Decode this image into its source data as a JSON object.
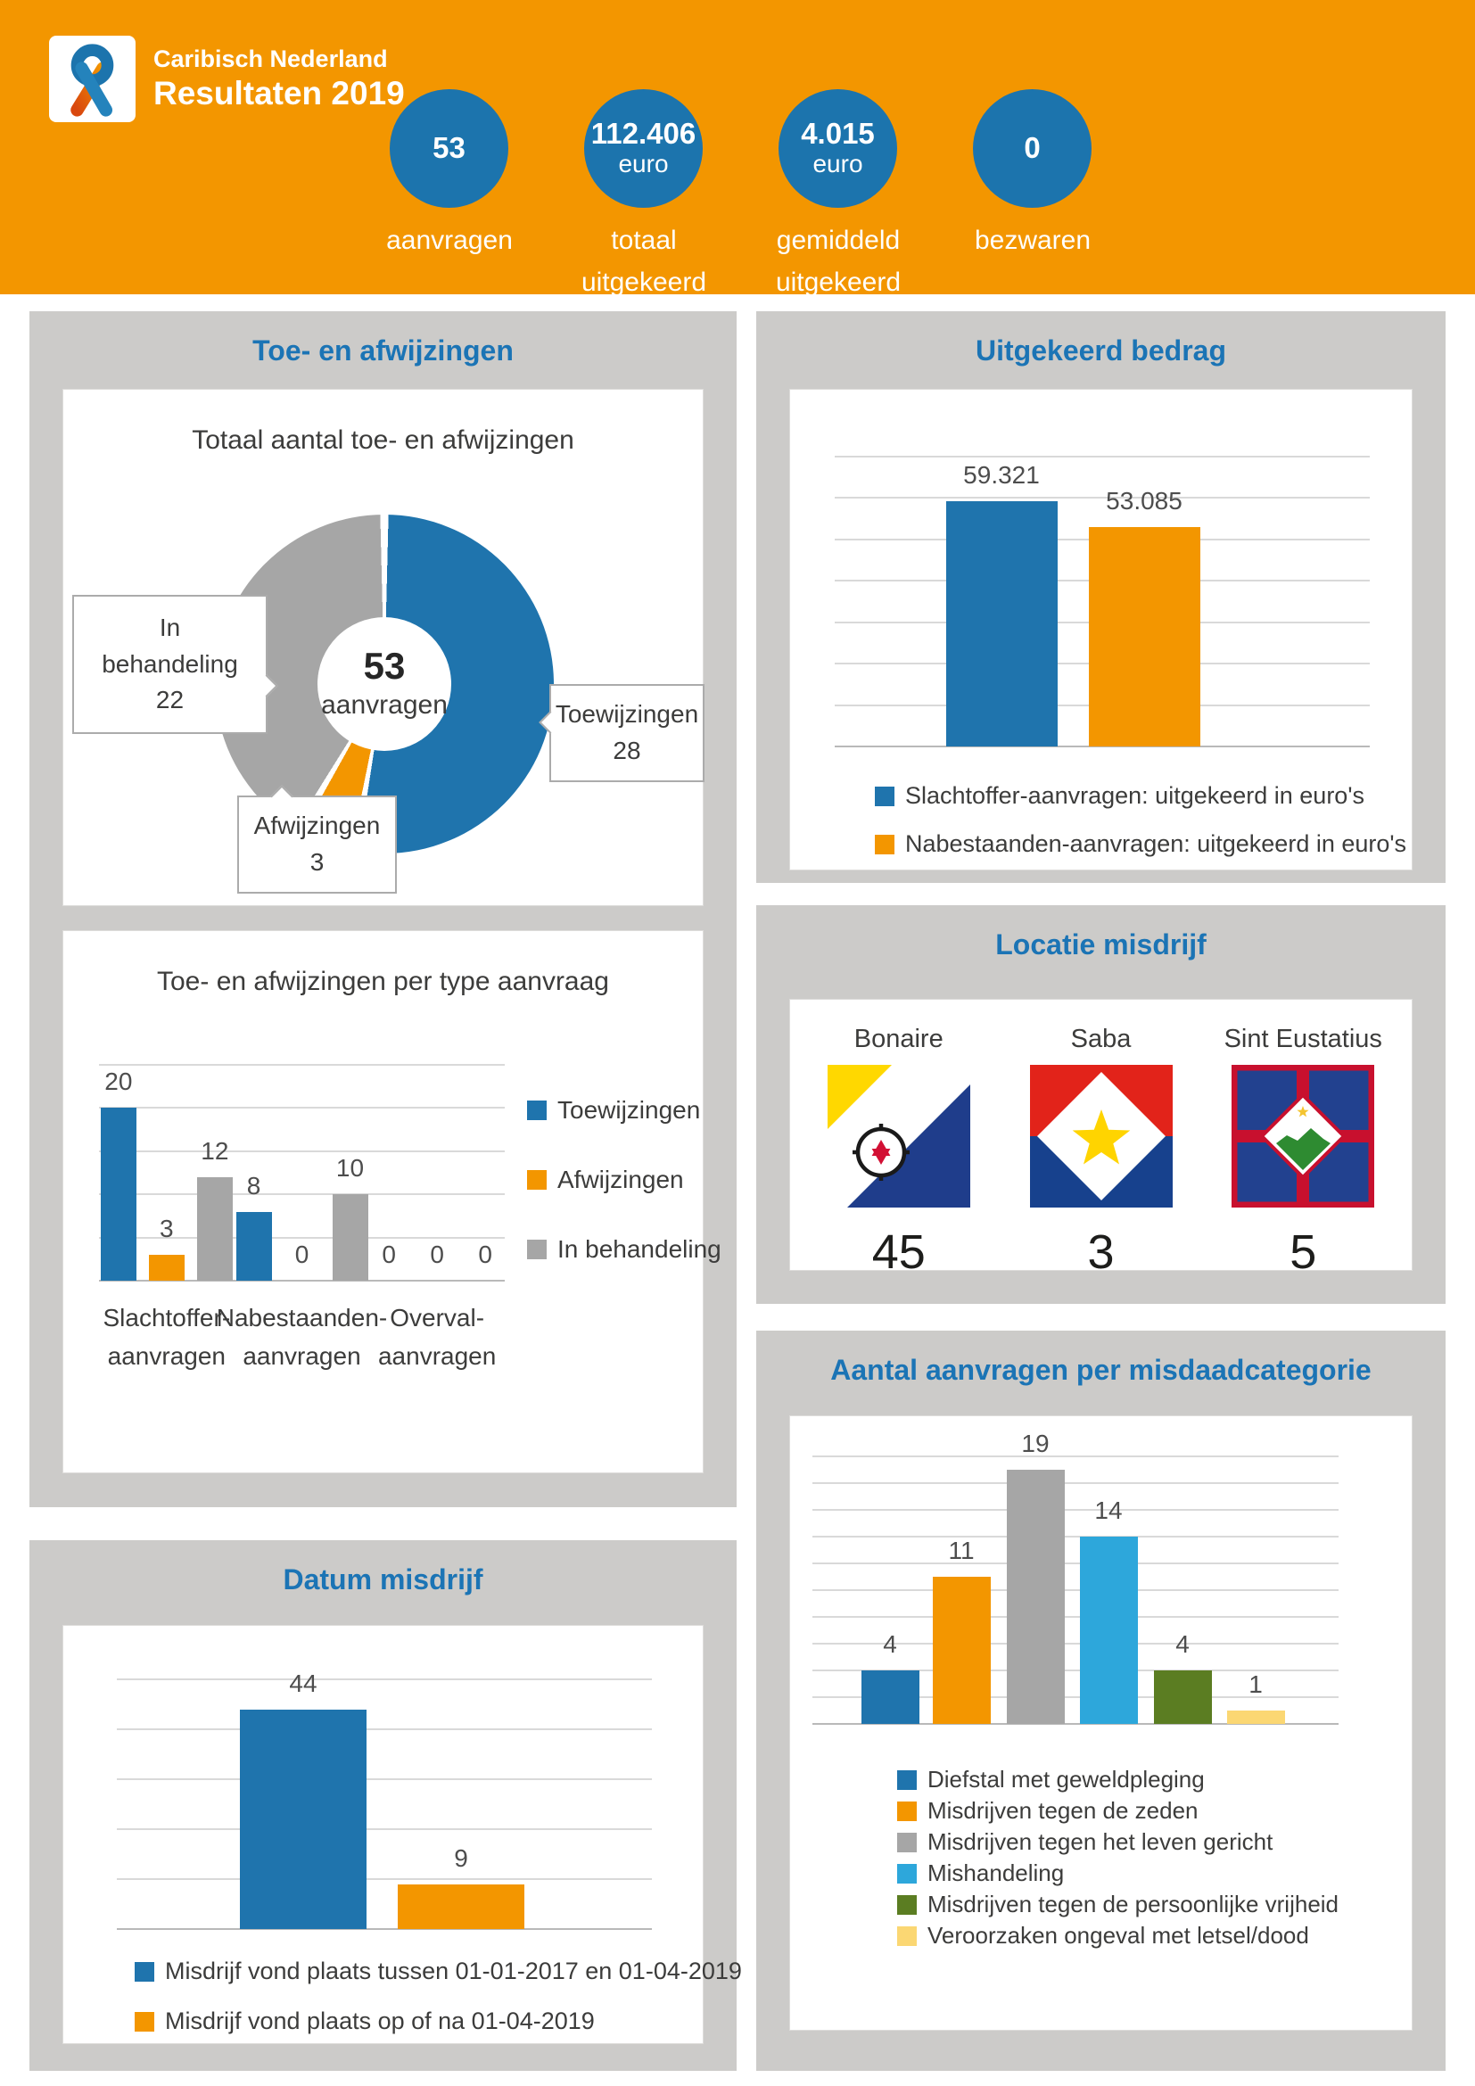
{
  "colors": {
    "brand_orange": "#F39600",
    "brand_blue": "#1C74AD",
    "title_blue": "#1B74B5",
    "series_gray": "#A6A6A6",
    "series_lightblue": "#2DA7DB",
    "series_green": "#5B7D22",
    "series_lightyellow": "#FBD773",
    "panel_gray": "#CCCBC9"
  },
  "header": {
    "brand_line1": "Caribisch Nederland",
    "brand_line2": "Resultaten 2019",
    "stats": [
      {
        "value": "53",
        "unit": "",
        "label": "aanvragen"
      },
      {
        "value": "112.406",
        "unit": "euro",
        "label": "totaal\nuitgekeerd"
      },
      {
        "value": "4.015",
        "unit": "euro",
        "label": "gemiddeld\nuitgekeerd"
      },
      {
        "value": "0",
        "unit": "",
        "label": "bezwaren"
      }
    ]
  },
  "panels": {
    "toe_afwijzingen": {
      "title": "Toe- en afwijzingen"
    },
    "uitgekeerd": {
      "title": "Uitgekeerd bedrag"
    },
    "locatie": {
      "title": "Locatie misdrijf"
    },
    "datum": {
      "title": "Datum misdrijf"
    },
    "categorie": {
      "title": "Aantal aanvragen per misdaadcategorie"
    }
  },
  "chart_data": [
    {
      "id": "totaal_donut",
      "type": "pie",
      "title": "Totaal aantal toe- en afwijzingen",
      "center": {
        "value": "53",
        "label": "aanvragen"
      },
      "slices": [
        {
          "label": "Toewijzingen",
          "value": 28,
          "color": "#1F74AD",
          "callout": [
            "Toewijzingen",
            "28"
          ]
        },
        {
          "label": "Afwijzingen",
          "value": 3,
          "color": "#F39600",
          "callout": [
            "Afwijzingen",
            "3"
          ]
        },
        {
          "label": "In behandeling",
          "value": 22,
          "color": "#A6A6A6",
          "callout": [
            "In",
            "behandeling",
            "22"
          ]
        }
      ],
      "legend_position": "callouts"
    },
    {
      "id": "per_type",
      "type": "bar",
      "title": "Toe- en afwijzingen per type aanvraag",
      "categories": [
        [
          "Slachtoffer-",
          "aanvragen"
        ],
        [
          "Nabestaanden-",
          "aanvragen"
        ],
        [
          "Overval-",
          "aanvragen"
        ]
      ],
      "series": [
        {
          "name": "Toewijzingen",
          "color": "#1F74AD",
          "values": [
            20,
            8,
            0
          ]
        },
        {
          "name": "Afwijzingen",
          "color": "#F39600",
          "values": [
            3,
            0,
            0
          ]
        },
        {
          "name": "In behandeling",
          "color": "#A6A6A6",
          "values": [
            12,
            10,
            0
          ]
        }
      ],
      "ylim": [
        0,
        25
      ],
      "grid_step": 5,
      "grid": true,
      "legend_position": "right"
    },
    {
      "id": "uitgekeerd",
      "type": "bar",
      "title": "Uitgekeerd bedrag",
      "bars": [
        {
          "name": "Slachtoffer-aanvragen: uitgekeerd in euro's",
          "value": 59321,
          "label": "59.321",
          "color": "#1F74AD"
        },
        {
          "name": "Nabestaanden-aanvragen: uitgekeerd in euro's",
          "value": 53085,
          "label": "53.085",
          "color": "#F39600"
        }
      ],
      "ylim": [
        0,
        70000
      ],
      "grid_step": 10000,
      "grid": true,
      "legend_position": "bottom"
    },
    {
      "id": "locatie",
      "type": "table",
      "title": "Locatie misdrijf",
      "categories": [
        "Bonaire",
        "Saba",
        "Sint Eustatius"
      ],
      "values": [
        45,
        3,
        5
      ]
    },
    {
      "id": "datum",
      "type": "bar",
      "title": "Datum misdrijf",
      "bars": [
        {
          "name": "Misdrijf vond plaats tussen 01-01-2017 en 01-04-2019",
          "value": 44,
          "label": "44",
          "color": "#1F74AD"
        },
        {
          "name": "Misdrijf vond plaats op of na 01-04-2019",
          "value": 9,
          "label": "9",
          "color": "#F39600"
        }
      ],
      "ylim": [
        0,
        50
      ],
      "grid_step": 10,
      "grid": true,
      "legend_position": "bottom"
    },
    {
      "id": "categorie",
      "type": "bar",
      "title": "Aantal aanvragen per misdaadcategorie",
      "bars": [
        {
          "name": "Diefstal met geweldpleging",
          "value": 4,
          "label": "4",
          "color": "#1F74AD"
        },
        {
          "name": "Misdrijven tegen de zeden",
          "value": 11,
          "label": "11",
          "color": "#F39600"
        },
        {
          "name": "Misdrijven tegen het leven gericht",
          "value": 19,
          "label": "19",
          "color": "#A6A6A6"
        },
        {
          "name": "Mishandeling",
          "value": 14,
          "label": "14",
          "color": "#2DA7DB"
        },
        {
          "name": "Misdrijven tegen de persoonlijke vrijheid",
          "value": 4,
          "label": "4",
          "color": "#5B7D22"
        },
        {
          "name": "Veroorzaken ongeval met letsel/dood",
          "value": 1,
          "label": "1",
          "color": "#FBD773"
        }
      ],
      "ylim": [
        0,
        20
      ],
      "grid_step": 2,
      "grid": true,
      "legend_position": "bottom"
    }
  ]
}
